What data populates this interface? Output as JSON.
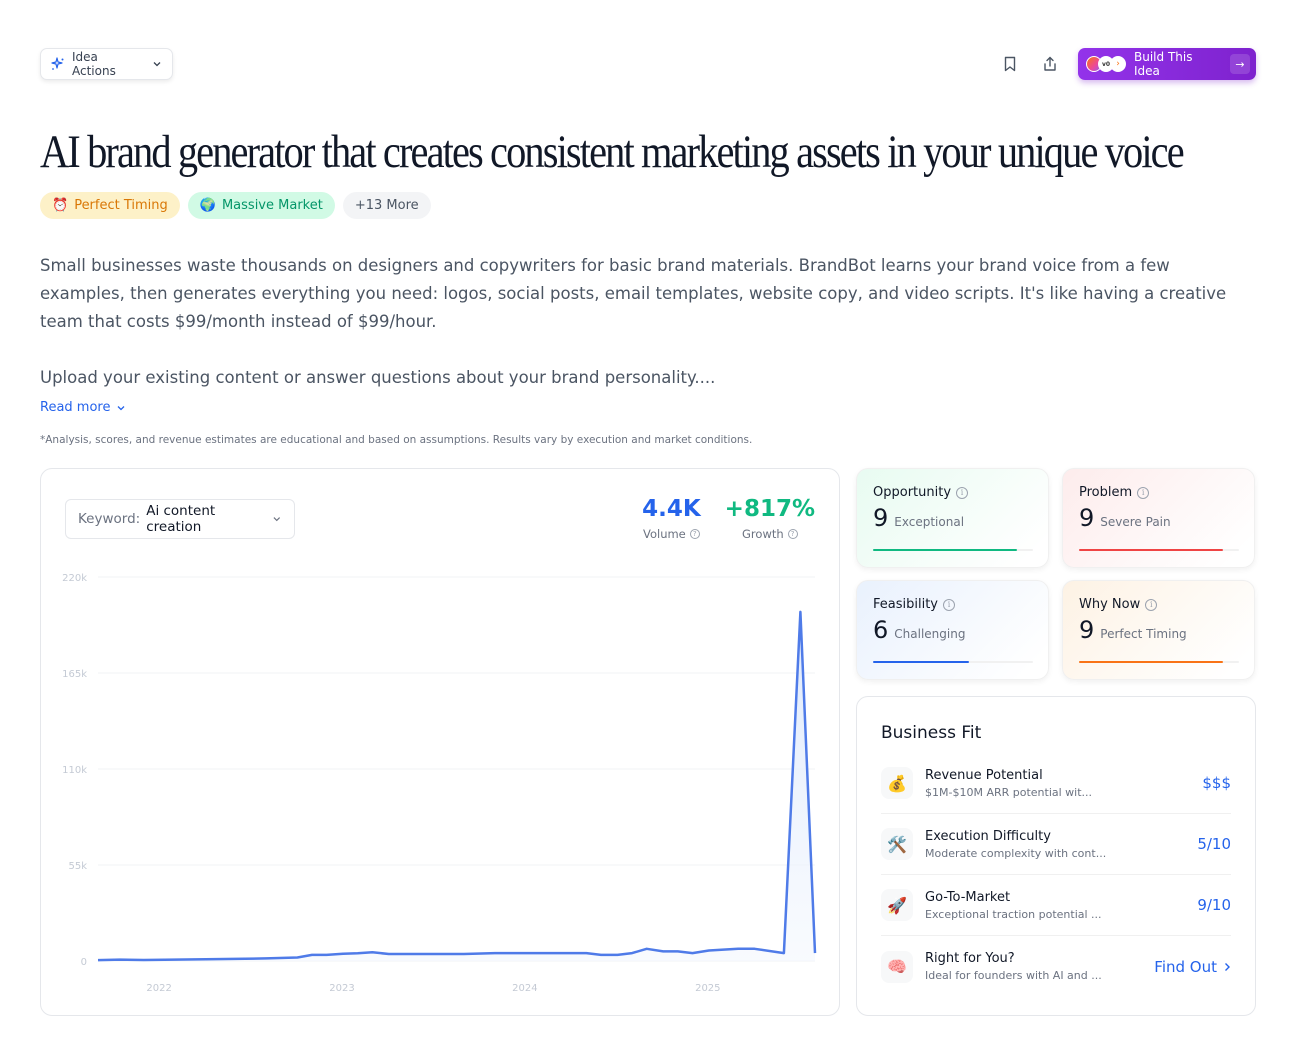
{
  "toolbar": {
    "idea_actions_label": "Idea Actions",
    "build_label": "Build This Idea",
    "icons": [
      "sparkle-icon",
      "chevron-down-icon",
      "bookmark-icon",
      "share-icon",
      "arrow-right-icon"
    ]
  },
  "title": "AI brand generator that creates consistent marketing assets in your unique voice",
  "tags": [
    {
      "emoji": "⏰",
      "label": "Perfect Timing"
    },
    {
      "emoji": "🌍",
      "label": "Massive Market"
    },
    {
      "emoji": "",
      "label": "+13 More"
    }
  ],
  "description": {
    "p1": "Small businesses waste thousands on designers and copywriters for basic brand materials. BrandBot learns your brand voice from a few examples, then generates everything you need: logos, social posts, email templates, website copy, and video scripts. It's like having a creative team that costs $99/month instead of $99/hour.",
    "p2": "Upload your existing content or answer questions about your brand personality....",
    "read_more": "Read more"
  },
  "disclaimer": "*Analysis, scores, and revenue estimates are educational and based on assumptions. Results vary by execution and market conditions.",
  "keyword": {
    "label": "Keyword:",
    "value": "Ai content creation"
  },
  "metrics": {
    "volume": {
      "value": "4.4K",
      "label": "Volume"
    },
    "growth": {
      "value": "+817%",
      "label": "Growth"
    }
  },
  "chart_data": {
    "type": "area",
    "title": "",
    "xlabel": "",
    "ylabel": "",
    "x_tick_labels": [
      "2022",
      "2023",
      "2024",
      "2025"
    ],
    "y_tick_labels": [
      "0",
      "55k",
      "110k",
      "165k",
      "220k"
    ],
    "ylim": [
      0,
      220000
    ],
    "grid": true,
    "legend": "none",
    "series": [
      {
        "name": "Ai content creation",
        "color": "#4f7be8",
        "x": [
          2021.83,
          2021.95,
          2022.08,
          2022.25,
          2022.42,
          2022.58,
          2022.75,
          2022.92,
          2023.0,
          2023.08,
          2023.17,
          2023.25,
          2023.33,
          2023.42,
          2023.5,
          2023.67,
          2023.83,
          2024.0,
          2024.17,
          2024.33,
          2024.5,
          2024.58,
          2024.67,
          2024.75,
          2024.83,
          2024.92,
          2025.0,
          2025.08,
          2025.17,
          2025.33,
          2025.42,
          2025.58,
          2025.67,
          2025.75
        ],
        "values": [
          500,
          800,
          600,
          800,
          1000,
          1200,
          1500,
          2000,
          3500,
          3500,
          4200,
          4400,
          5000,
          4000,
          4000,
          4000,
          4000,
          4500,
          4500,
          4500,
          4500,
          3500,
          3500,
          4500,
          7000,
          5500,
          5500,
          4500,
          6000,
          7000,
          7000,
          4500,
          200000,
          4500
        ]
      }
    ]
  },
  "scores": [
    {
      "key": "opportunity",
      "title": "Opportunity",
      "value": "9",
      "label": "Exceptional",
      "color": "#10b981",
      "pct": 90
    },
    {
      "key": "problem",
      "title": "Problem",
      "value": "9",
      "label": "Severe Pain",
      "color": "#ef4444",
      "pct": 90
    },
    {
      "key": "feasibility",
      "title": "Feasibility",
      "value": "6",
      "label": "Challenging",
      "color": "#2563eb",
      "pct": 60
    },
    {
      "key": "why_now",
      "title": "Why Now",
      "value": "9",
      "label": "Perfect Timing",
      "color": "#f97316",
      "pct": 90
    }
  ],
  "business_fit": {
    "title": "Business Fit",
    "items": [
      {
        "emoji": "💰",
        "name": "Revenue Potential",
        "sub": "$1M-$10M ARR potential wit...",
        "value": "$$$"
      },
      {
        "emoji": "🛠️",
        "name": "Execution Difficulty",
        "sub": "Moderate complexity with cont...",
        "value": "5/10"
      },
      {
        "emoji": "🚀",
        "name": "Go-To-Market",
        "sub": "Exceptional traction potential ...",
        "value": "9/10"
      },
      {
        "emoji": "🧠",
        "name": "Right for You?",
        "sub": "Ideal for founders with AI and ...",
        "value": "Find Out"
      }
    ]
  }
}
